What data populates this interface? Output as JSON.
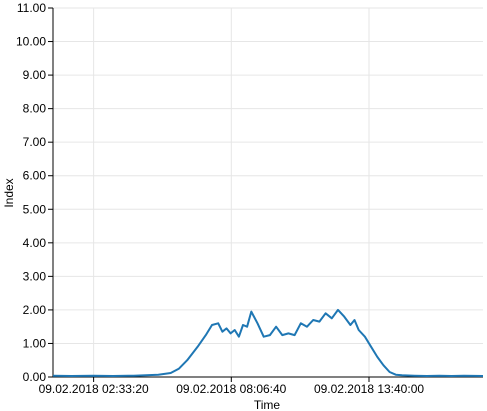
{
  "chart_data": {
    "type": "line",
    "xlabel": "Time",
    "ylabel": "Index",
    "x_ticks": [
      "09.02.2018 02:33:20",
      "09.02.2018 08:06:40",
      "09.02.2018 13:40:00"
    ],
    "x_range": [
      "09.02.2018 00:55",
      "09.02.2018 18:16"
    ],
    "ylim": [
      0,
      11
    ],
    "y_ticks": [
      "0.00",
      "1.00",
      "2.00",
      "3.00",
      "4.00",
      "5.00",
      "6.00",
      "7.00",
      "8.00",
      "9.00",
      "10.00",
      "11.00"
    ],
    "grid": true,
    "series": [
      {
        "color": "#1f77b4",
        "x": [
          "00:55",
          "01:40",
          "02:33",
          "03:20",
          "04:10",
          "04:40",
          "05:10",
          "05:40",
          "06:00",
          "06:20",
          "06:45",
          "07:05",
          "07:20",
          "07:35",
          "07:45",
          "07:55",
          "08:05",
          "08:15",
          "08:25",
          "08:35",
          "08:45",
          "08:55",
          "09:10",
          "09:25",
          "09:40",
          "09:55",
          "10:10",
          "10:25",
          "10:40",
          "10:55",
          "11:10",
          "11:25",
          "11:40",
          "11:55",
          "12:10",
          "12:25",
          "12:40",
          "12:55",
          "13:05",
          "13:15",
          "13:30",
          "13:45",
          "14:00",
          "14:15",
          "14:30",
          "14:45",
          "15:00",
          "15:30",
          "16:00",
          "16:30",
          "17:00",
          "17:30",
          "18:16"
        ],
        "y": [
          0.04,
          0.03,
          0.04,
          0.03,
          0.04,
          0.05,
          0.07,
          0.12,
          0.25,
          0.5,
          0.9,
          1.25,
          1.55,
          1.6,
          1.35,
          1.45,
          1.3,
          1.4,
          1.2,
          1.55,
          1.5,
          1.95,
          1.6,
          1.2,
          1.25,
          1.5,
          1.25,
          1.3,
          1.25,
          1.6,
          1.5,
          1.7,
          1.65,
          1.9,
          1.75,
          2.0,
          1.8,
          1.55,
          1.7,
          1.4,
          1.2,
          0.9,
          0.6,
          0.35,
          0.15,
          0.07,
          0.05,
          0.04,
          0.03,
          0.04,
          0.03,
          0.04,
          0.03
        ]
      }
    ]
  }
}
